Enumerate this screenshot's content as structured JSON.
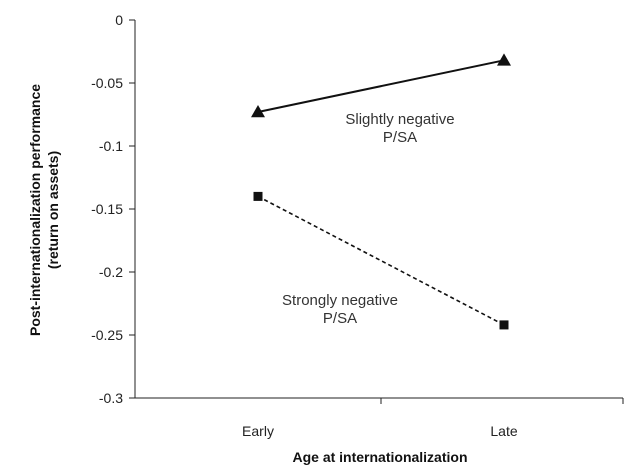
{
  "chart_data": {
    "type": "line",
    "title": "",
    "xlabel": "Age at internationalization",
    "ylabel_lines": [
      "Post-internationalization performance",
      "(return on assets)"
    ],
    "categories": [
      "Early",
      "Late"
    ],
    "ylim": [
      -0.3,
      0
    ],
    "yticks": [
      0,
      -0.05,
      -0.1,
      -0.15,
      -0.2,
      -0.25,
      -0.3
    ],
    "ytick_labels": [
      "0",
      "-0.05",
      "-0.1",
      "-0.15",
      "-0.2",
      "-0.25",
      "-0.3"
    ],
    "grid": false,
    "legend": "none",
    "series": [
      {
        "annotation_lines": [
          "Slightly negative",
          "P/SA"
        ],
        "values": [
          -0.073,
          -0.032
        ],
        "marker": "triangle",
        "line_style": "solid",
        "color": "#111111"
      },
      {
        "annotation_lines": [
          "Strongly negative",
          "P/SA"
        ],
        "values": [
          -0.14,
          -0.242
        ],
        "marker": "square",
        "line_style": "dashed",
        "color": "#111111"
      }
    ]
  }
}
